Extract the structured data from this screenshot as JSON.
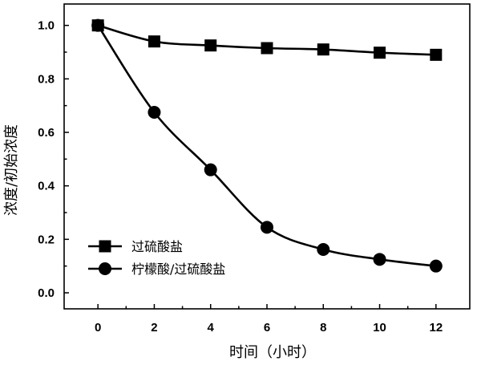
{
  "chart_data": {
    "type": "line",
    "x": [
      0,
      2,
      4,
      6,
      8,
      10,
      12
    ],
    "series": [
      {
        "name": "过硫酸盐",
        "marker": "square",
        "color": "#000000",
        "values": [
          1.0,
          0.94,
          0.925,
          0.915,
          0.91,
          0.898,
          0.89
        ]
      },
      {
        "name": "柠檬酸/过硫酸盐",
        "marker": "circle",
        "color": "#000000",
        "values": [
          1.0,
          0.675,
          0.46,
          0.245,
          0.162,
          0.125,
          0.1
        ]
      }
    ],
    "xlabel": "时间（小时）",
    "ylabel": "浓度/初始浓度",
    "xlim": [
      -1.2,
      13.2
    ],
    "ylim": [
      -0.06,
      1.08
    ],
    "xticks": [
      "0",
      "2",
      "4",
      "6",
      "8",
      "10",
      "12"
    ],
    "yticks": [
      "0.0",
      "0.2",
      "0.4",
      "0.6",
      "0.8",
      "1.0"
    ],
    "legend_position": "lower-left",
    "grid": false
  }
}
